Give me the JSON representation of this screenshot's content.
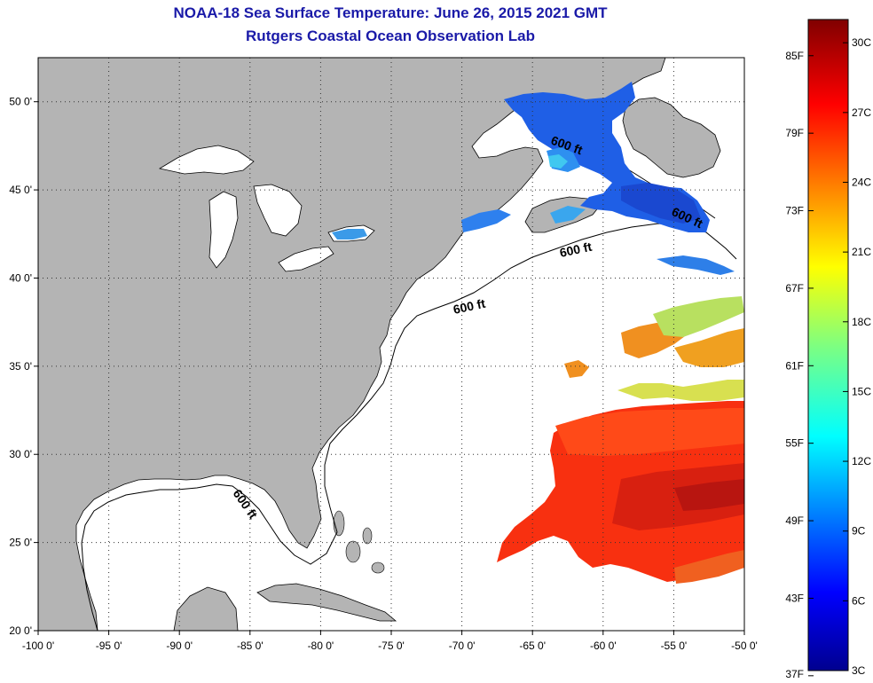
{
  "title": "NOAA-18 Sea Surface Temperature:  June 26, 2015 2021 GMT",
  "subtitle": "Rutgers Coastal Ocean Observation Lab",
  "map": {
    "lon_range": [
      -100,
      -50
    ],
    "lat_range": [
      20,
      52.5
    ],
    "lon_ticks": [
      "-100 0'",
      "-95 0'",
      "-90 0'",
      "-85 0'",
      "-80 0'",
      "-75 0'",
      "-70 0'",
      "-65 0'",
      "-60 0'",
      "-55 0'",
      "-50 0'"
    ],
    "lat_ticks": [
      "50 0'",
      "45 0'",
      "40 0'",
      "35 0'",
      "30 0'",
      "25 0'",
      "20 0'"
    ],
    "grid": "dotted",
    "contour_label": "600 ft",
    "colors": {
      "land": "#b4b4b4",
      "ocean_nodata": "#ffffff",
      "title": "#1a1aa8"
    }
  },
  "colorbar": {
    "fahrenheit_labels": [
      "85F",
      "79F",
      "73F",
      "67F",
      "61F",
      "55F",
      "49F",
      "43F",
      "37F"
    ],
    "celsius_labels": [
      "30C",
      "27C",
      "24C",
      "21C",
      "18C",
      "15C",
      "12C",
      "9C",
      "6C",
      "3C"
    ],
    "min_c": 3,
    "max_c": 31,
    "colormap": "jet"
  }
}
